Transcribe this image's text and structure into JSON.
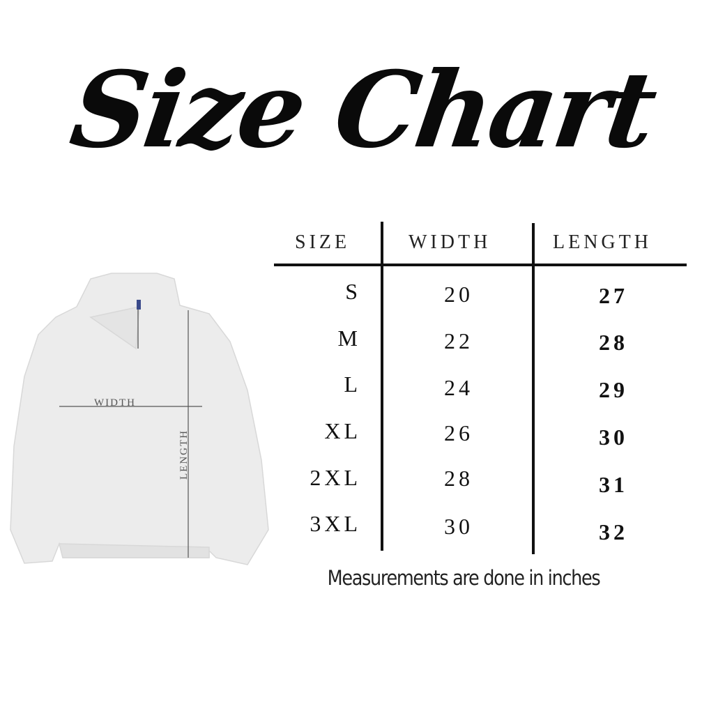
{
  "title": "Size Chart",
  "table": {
    "headers": [
      "SIZE",
      "WIDTH",
      "LENGTH"
    ],
    "rows": [
      {
        "size": "S",
        "width": "20",
        "length": "27"
      },
      {
        "size": "M",
        "width": "22",
        "length": "28"
      },
      {
        "size": "L",
        "width": "24",
        "length": "29"
      },
      {
        "size": "XL",
        "width": "26",
        "length": "30"
      },
      {
        "size": "2XL",
        "width": "28",
        "length": "31"
      },
      {
        "size": "3XL",
        "width": "30",
        "length": "32"
      }
    ]
  },
  "diagram": {
    "width_label": "WIDTH",
    "length_label": "LENGTH",
    "garment_color": "#ececec"
  },
  "caption": "Measurements are done in inches"
}
